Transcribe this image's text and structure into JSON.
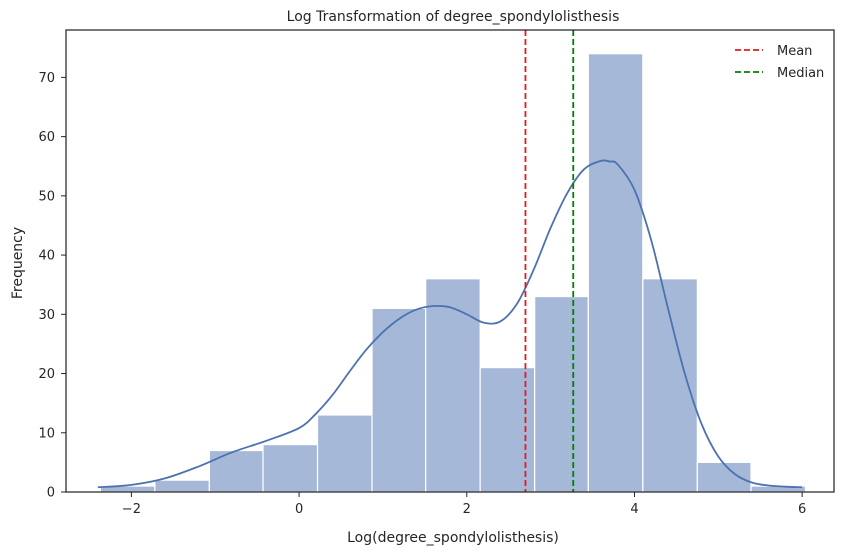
{
  "chart_data": {
    "type": "bar",
    "title": "Log Transformation of degree_spondylolisthesis",
    "xlabel": "Log(degree_spondylolisthesis)",
    "ylabel": "Frequency",
    "xlim": [
      -2.78,
      6.38
    ],
    "ylim": [
      0,
      78
    ],
    "xticks": [
      -2,
      0,
      2,
      4,
      6
    ],
    "xtick_labels": [
      "−2",
      "0",
      "2",
      "4",
      "6"
    ],
    "yticks": [
      0,
      10,
      20,
      30,
      40,
      50,
      60,
      70
    ],
    "grid": false,
    "legend_position": "top-right",
    "histogram": {
      "bin_edges": [
        -2.37,
        -1.72,
        -1.07,
        -0.43,
        0.22,
        0.87,
        1.51,
        2.16,
        2.81,
        3.45,
        4.1,
        4.75,
        5.39,
        6.04
      ],
      "counts": [
        1,
        2,
        7,
        8,
        13,
        31,
        36,
        21,
        33,
        74,
        36,
        5,
        1
      ],
      "color": "#a5b8d8"
    },
    "kde": {
      "x": [
        -2.4,
        -2.0,
        -1.6,
        -1.2,
        -0.8,
        -0.4,
        0.0,
        0.2,
        0.4,
        0.6,
        0.8,
        1.0,
        1.2,
        1.4,
        1.6,
        1.8,
        2.0,
        2.2,
        2.4,
        2.6,
        2.8,
        3.0,
        3.2,
        3.4,
        3.6,
        3.7,
        3.8,
        4.0,
        4.2,
        4.4,
        4.6,
        4.8,
        5.0,
        5.2,
        5.4,
        5.6,
        5.8,
        6.0
      ],
      "y": [
        0.8,
        1.2,
        2.3,
        4.3,
        6.7,
        8.6,
        10.8,
        13.2,
        16.4,
        20.3,
        24.0,
        27.0,
        29.3,
        30.8,
        31.4,
        31.2,
        30.0,
        28.6,
        28.8,
        31.8,
        37.6,
        44.6,
        50.5,
        54.5,
        55.9,
        55.8,
        55.3,
        51.0,
        42.5,
        31.0,
        20.0,
        11.5,
        6.0,
        3.0,
        1.6,
        1.1,
        0.9,
        0.8
      ],
      "color": "#4c72b0"
    },
    "series": [
      {
        "name": "Mean",
        "value": 2.7,
        "color": "#e31a1c",
        "style": "dashed"
      },
      {
        "name": "Median",
        "value": 3.27,
        "color": "#008000",
        "style": "dashed"
      }
    ]
  }
}
